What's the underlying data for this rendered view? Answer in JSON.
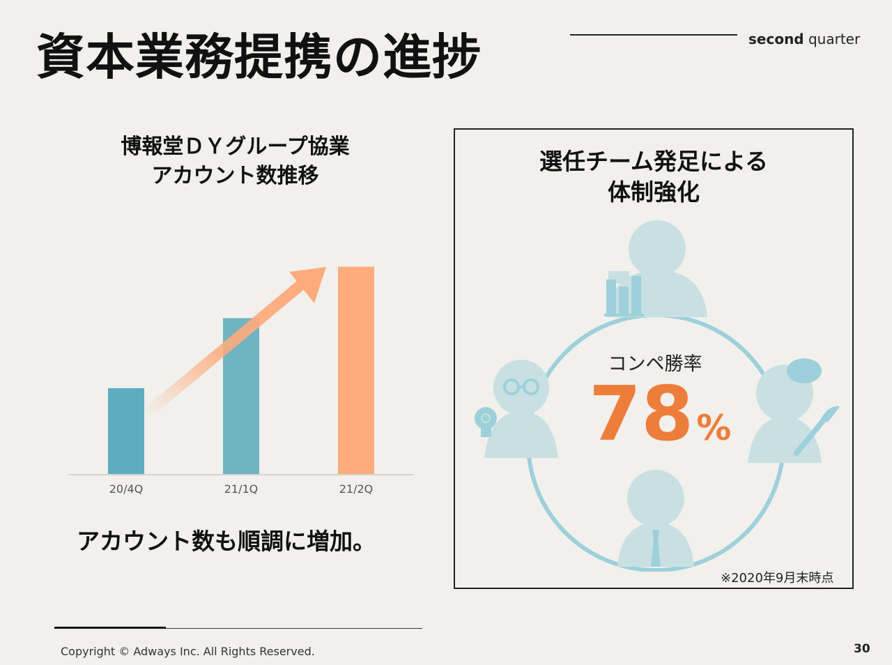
{
  "slide": {
    "title": "資本業務提携の進捗",
    "section_bold": "second",
    "section_rest": "quarter",
    "copyright": "Copyright © Adways Inc. All Rights Reserved.",
    "page_number": "30"
  },
  "left": {
    "heading_line1": "博報堂ＤＹグループ協業",
    "heading_line2": "アカウント数推移",
    "caption": "アカウント数も順調に増加。"
  },
  "chart_data": {
    "type": "bar",
    "categories": [
      "20/4Q",
      "21/1Q",
      "21/2Q"
    ],
    "values": [
      42,
      76,
      101
    ],
    "ylim": [
      0,
      110
    ],
    "grid": false,
    "colors": [
      "#5eadbf",
      "#70b3c1",
      "#ffab7c"
    ]
  },
  "right": {
    "heading_line1": "選任チーム発足による",
    "heading_line2": "体制強化",
    "rate_label": "コンペ勝率",
    "rate_value": "78",
    "rate_unit": "%",
    "footnote": "※2020年9月末時点",
    "accent_color": "#ed7d3a",
    "icon_color": "#c9e0e2",
    "ring_color": "#9dd0da"
  },
  "icons": [
    "person-chart-gear-icon",
    "person-glasses-bulb-icon",
    "person-beret-brush-icon",
    "person-tie-icon",
    "trend-arrow-icon"
  ]
}
